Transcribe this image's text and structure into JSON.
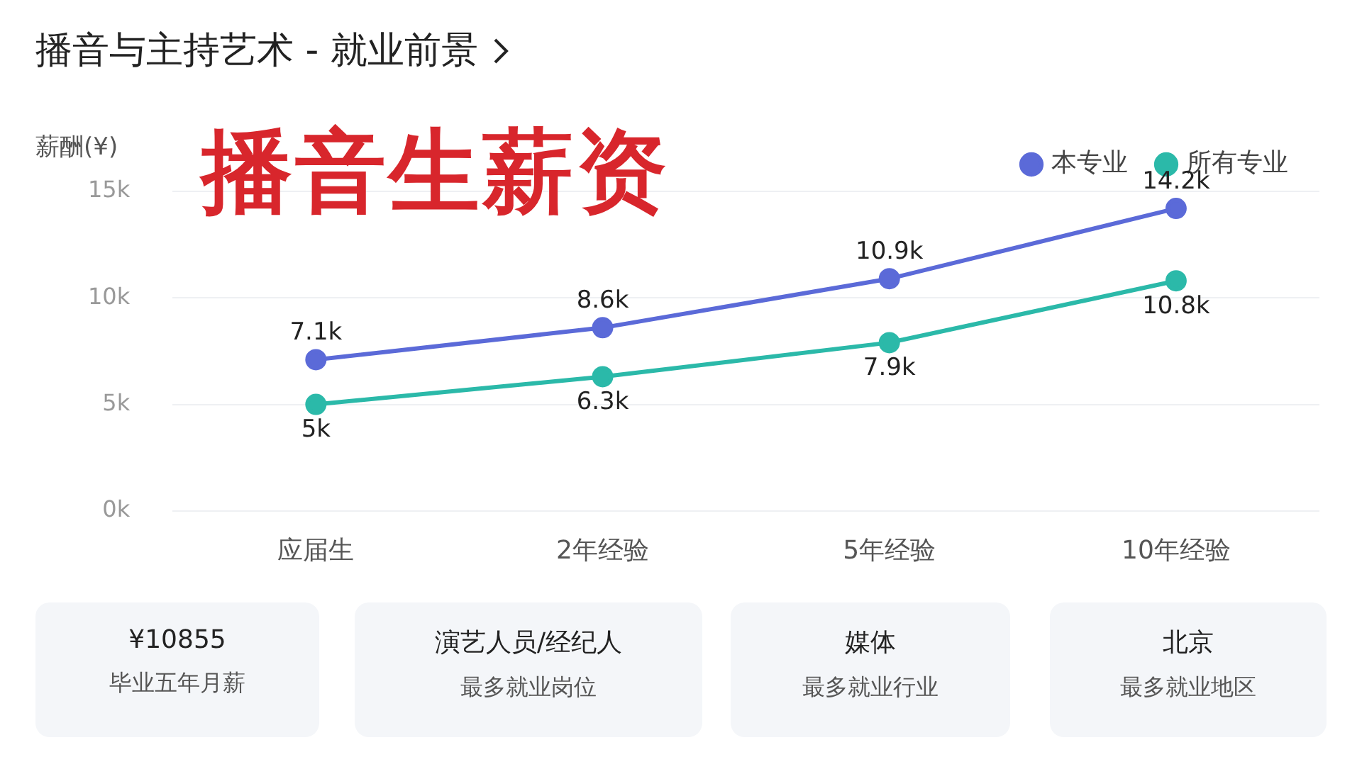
{
  "chart_data": {
    "type": "line",
    "title": "播音与主持艺术 - 就业前景",
    "subtitle": "播音生薪资",
    "ylabel": "薪酬(¥)",
    "categories": [
      "应届生",
      "2年经验",
      "5年经验",
      "10年经验"
    ],
    "series": [
      {
        "name": "本专业",
        "color": "#5b6ad8",
        "values": [
          7.1,
          8.6,
          10.9,
          14.2
        ],
        "value_labels": [
          "7.1k",
          "8.6k",
          "10.9k",
          "14.2k"
        ]
      },
      {
        "name": "所有专业",
        "color": "#2bb9a9",
        "values": [
          5,
          6.3,
          7.9,
          10.8
        ],
        "value_labels": [
          "5k",
          "6.3k",
          "7.9k",
          "10.8k"
        ]
      }
    ],
    "ylim": [
      0,
      15
    ],
    "yticks": [
      {
        "value": 0,
        "label": "0k"
      },
      {
        "value": 5,
        "label": "5k"
      },
      {
        "value": 10,
        "label": "10k"
      },
      {
        "value": 15,
        "label": "15k"
      }
    ],
    "grid": "y",
    "legend": "top right",
    "marker": "circle",
    "annotations": [
      "¥10855",
      "毕业五年月薪",
      "演艺人员/经纪人",
      "最多就业岗位",
      "媒体",
      "最多就业行业",
      "北京",
      "最多就业地区"
    ]
  }
}
